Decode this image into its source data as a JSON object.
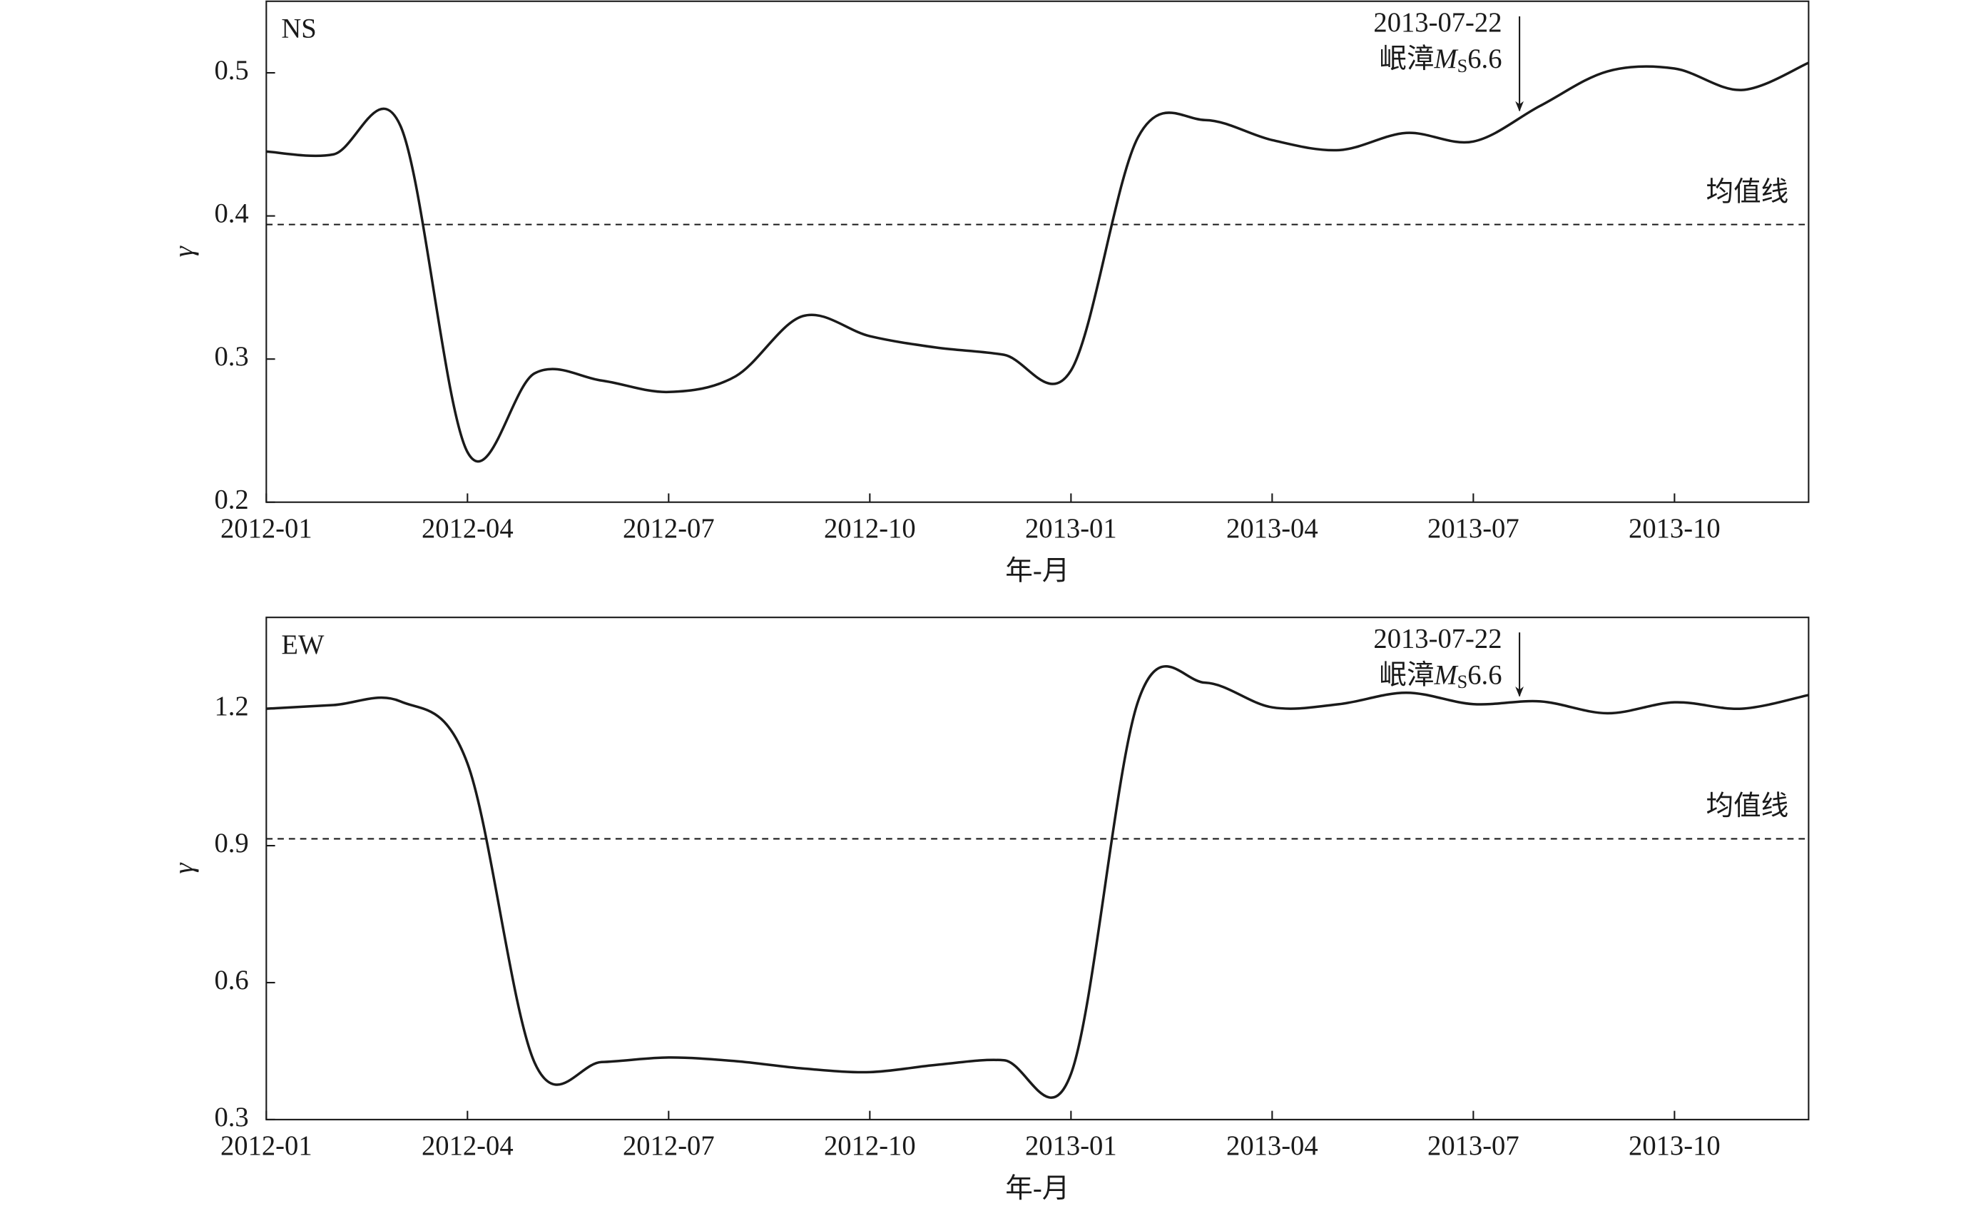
{
  "chart_data": [
    {
      "type": "line",
      "panel_label": "NS",
      "y_label": "γ",
      "x_label": "年-月",
      "x": [
        "2012-01",
        "2012-02",
        "2012-03",
        "2012-04",
        "2012-05",
        "2012-06",
        "2012-07",
        "2012-08",
        "2012-09",
        "2012-10",
        "2012-11",
        "2012-12",
        "2013-01",
        "2013-02",
        "2013-03",
        "2013-04",
        "2013-05",
        "2013-06",
        "2013-07",
        "2013-08",
        "2013-09",
        "2013-10",
        "2013-11",
        "2013-12"
      ],
      "series": [
        {
          "name": "NS",
          "color": "#1a1a1a",
          "values": [
            0.445,
            0.443,
            0.463,
            0.235,
            0.29,
            0.285,
            0.277,
            0.288,
            0.33,
            0.316,
            0.308,
            0.303,
            0.292,
            0.455,
            0.467,
            0.453,
            0.446,
            0.458,
            0.452,
            0.477,
            0.501,
            0.503,
            0.488,
            0.507
          ]
        }
      ],
      "xlim": [
        "2012-01",
        "2013-12"
      ],
      "xticks": [
        "2012-01",
        "2012-04",
        "2012-07",
        "2012-10",
        "2013-01",
        "2013-04",
        "2013-07",
        "2013-10"
      ],
      "ylim": [
        0.2,
        0.55
      ],
      "yticks": [
        0.2,
        0.3,
        0.4,
        0.5
      ],
      "mean": 0.394,
      "mean_label": "均值线",
      "event": {
        "date": "2013-07-22",
        "place": "岷漳",
        "symbol": "M",
        "subscript": "S",
        "magnitude": "6.6"
      }
    },
    {
      "type": "line",
      "panel_label": "EW",
      "y_label": "γ",
      "x_label": "年-月",
      "x": [
        "2012-01",
        "2012-02",
        "2012-03",
        "2012-04",
        "2012-05",
        "2012-06",
        "2012-07",
        "2012-08",
        "2012-09",
        "2012-10",
        "2012-11",
        "2012-12",
        "2013-01",
        "2013-02",
        "2013-03",
        "2013-04",
        "2013-05",
        "2013-06",
        "2013-07",
        "2013-08",
        "2013-09",
        "2013-10",
        "2013-11",
        "2013-12"
      ],
      "series": [
        {
          "name": "EW",
          "color": "#1a1a1a",
          "values": [
            1.2,
            1.208,
            1.216,
            1.08,
            0.425,
            0.426,
            0.436,
            0.428,
            0.412,
            0.404,
            0.42,
            0.43,
            0.4,
            1.216,
            1.257,
            1.203,
            1.21,
            1.235,
            1.21,
            1.216,
            1.19,
            1.214,
            1.2,
            1.23
          ]
        }
      ],
      "xlim": [
        "2012-01",
        "2013-12"
      ],
      "xticks": [
        "2012-01",
        "2012-04",
        "2012-07",
        "2012-10",
        "2013-01",
        "2013-04",
        "2013-07",
        "2013-10"
      ],
      "ylim": [
        0.3,
        1.4
      ],
      "yticks": [
        0.3,
        0.6,
        0.9,
        1.2
      ],
      "mean": 0.915,
      "mean_label": "均值线",
      "event": {
        "date": "2013-07-22",
        "place": "岷漳",
        "symbol": "M",
        "subscript": "S",
        "magnitude": "6.6"
      }
    }
  ]
}
